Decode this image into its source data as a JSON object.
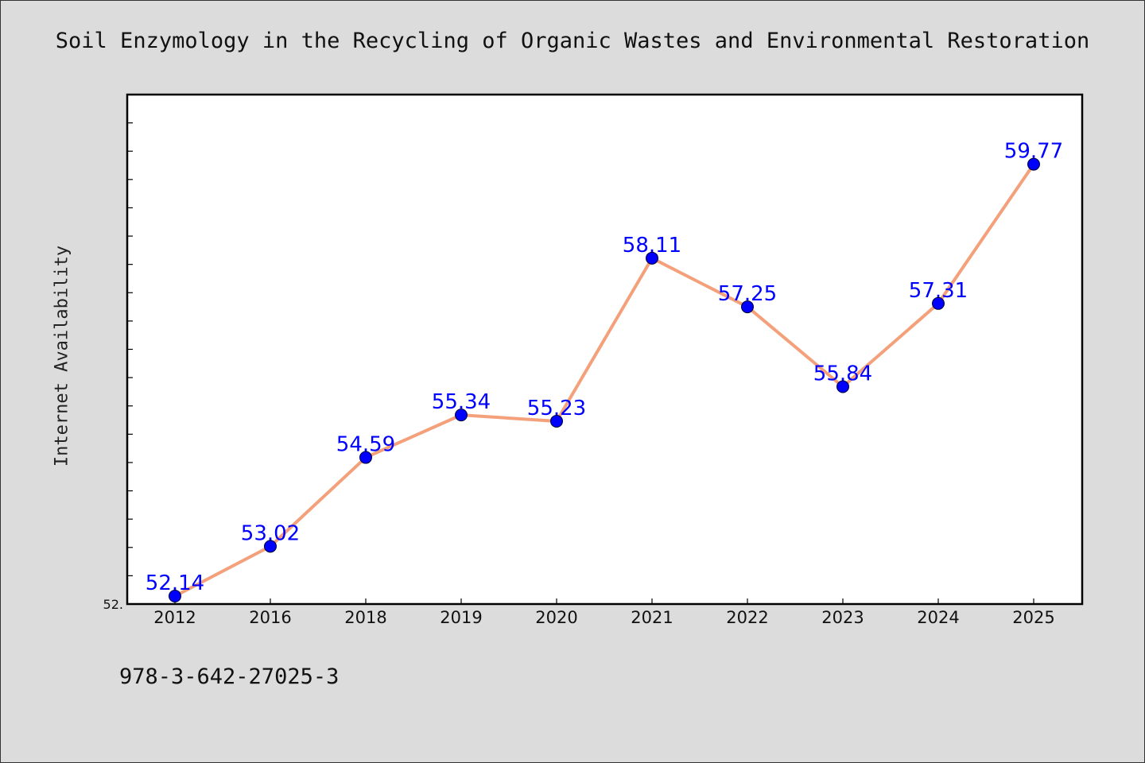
{
  "chart_data": {
    "type": "line",
    "title": "Soil Enzymology in the Recycling of Organic Wastes and Environmental Restoration",
    "xlabel": "",
    "ylabel": "Internet Availability",
    "categories": [
      "2012",
      "2016",
      "2018",
      "2019",
      "2020",
      "2021",
      "2022",
      "2023",
      "2024",
      "2025"
    ],
    "series": [
      {
        "values": [
          52.14,
          53.02,
          54.59,
          55.34,
          55.23,
          58.11,
          57.25,
          55.84,
          57.31,
          59.77
        ]
      }
    ],
    "ylim": [
      52.0,
      61.0
    ],
    "yticks": [
      {
        "value": 52.0,
        "label": "52."
      }
    ],
    "data_labels": [
      "52.14",
      "53.02",
      "54.59",
      "55.34",
      "55.23",
      "58.11",
      "57.25",
      "55.84",
      "57.31",
      "59.77"
    ],
    "grid": false,
    "legend": "none",
    "colors": {
      "line": "#f4a07a",
      "marker": "#0000ff",
      "label": "#0000ff",
      "plot_bg": "#ffffff",
      "page_bg": "#dcdcdc"
    }
  },
  "footer": {
    "text": "978-3-642-27025-3"
  }
}
